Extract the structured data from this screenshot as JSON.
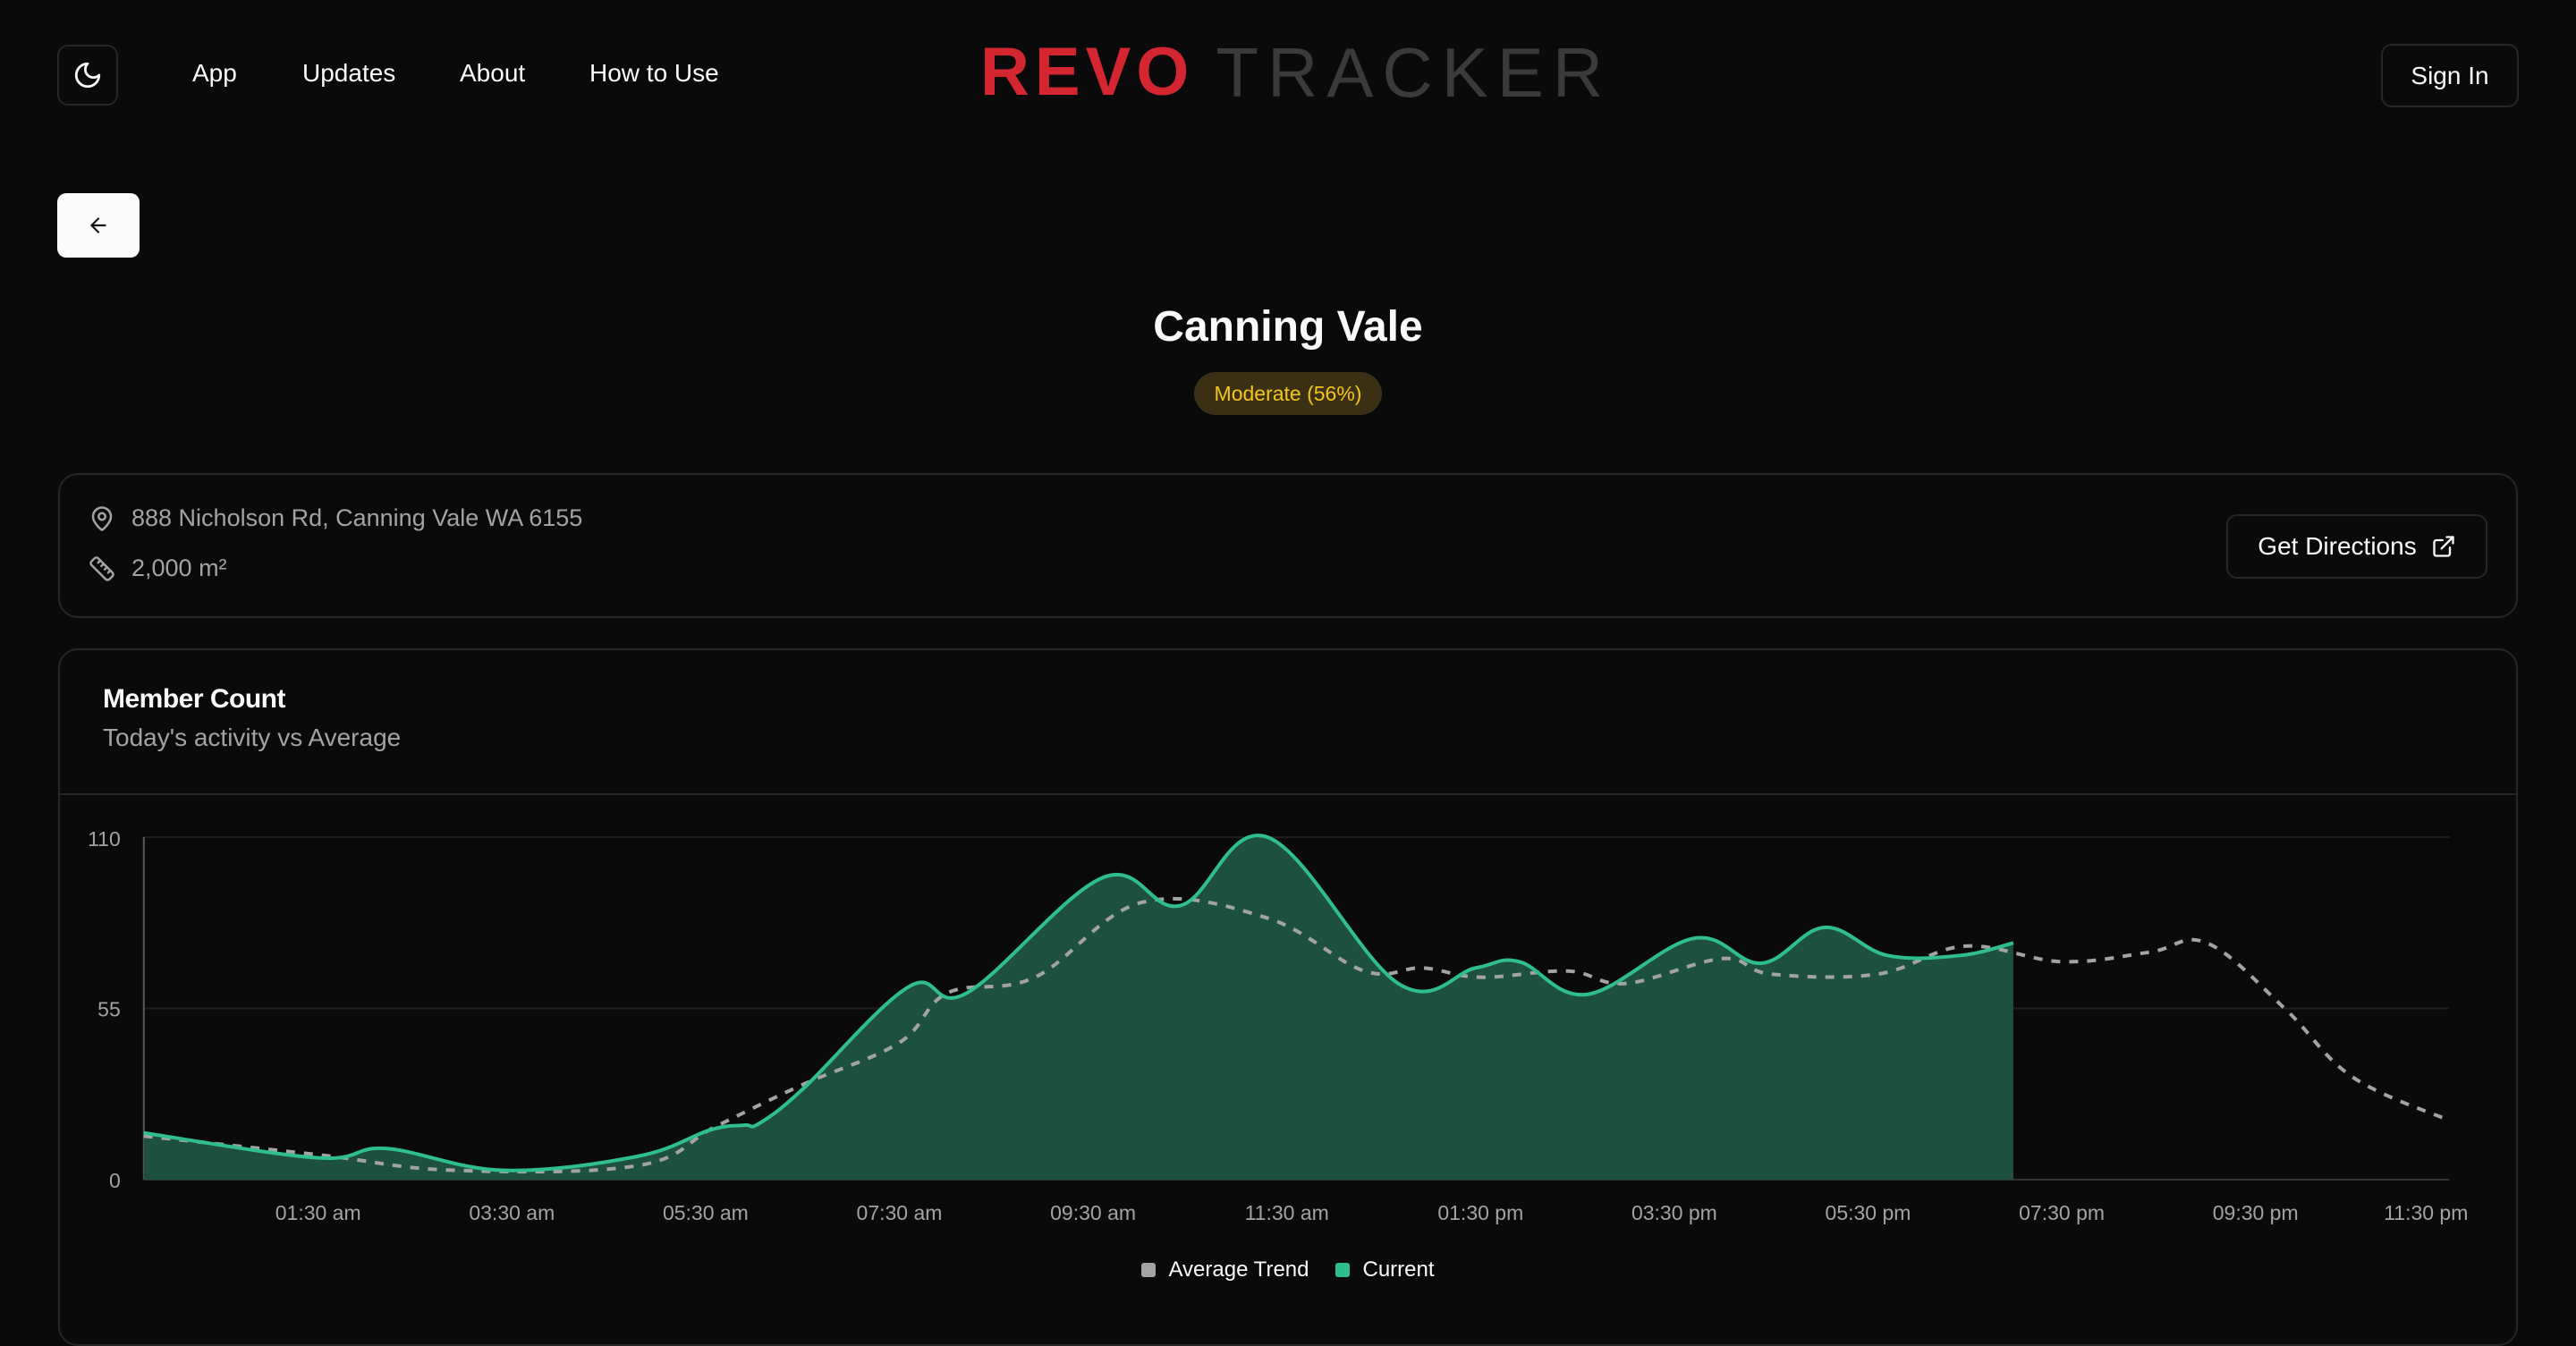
{
  "nav": {
    "theme_icon": "moon-icon",
    "links": [
      "App",
      "Updates",
      "About",
      "How to Use"
    ],
    "logo": {
      "bold": "REVO",
      "light": "TRACKER"
    },
    "sign_in": "Sign In"
  },
  "back_button": {
    "icon": "arrow-left-icon"
  },
  "gym": {
    "name": "Canning Vale",
    "status_badge": "Moderate (56%)",
    "address": "888 Nicholson Rd, Canning Vale WA 6155",
    "size": "2,000 m²",
    "directions_label": "Get Directions"
  },
  "chart_card": {
    "title": "Member Count",
    "subtitle": "Today's activity vs Average"
  },
  "colors": {
    "current": "#2fbf8c",
    "current_fill": "#1e5040",
    "average": "#a3a3a3",
    "badge_text": "#f5c518",
    "badge_bg": "#3b2f14",
    "logo_red": "#d32630"
  },
  "chart_data": {
    "type": "area",
    "title": "Member Count",
    "subtitle": "Today's activity vs Average",
    "xlabel": "",
    "ylabel": "",
    "ylim": [
      0,
      110
    ],
    "yticks": [
      0,
      55,
      110
    ],
    "xlim_hours": [
      -0.3,
      23.5
    ],
    "xticks": [
      "01:30 am",
      "03:30 am",
      "05:30 am",
      "07:30 am",
      "09:30 am",
      "11:30 am",
      "01:30 pm",
      "03:30 pm",
      "05:30 pm",
      "07:30 pm",
      "09:30 pm",
      "11:30 pm"
    ],
    "xtick_hours": [
      1.5,
      3.5,
      5.5,
      7.5,
      9.5,
      11.5,
      13.5,
      15.5,
      17.5,
      19.5,
      21.5,
      23.5
    ],
    "grid": "horizontal",
    "legend": [
      "Average Trend",
      "Current"
    ],
    "legend_position": "bottom",
    "series": [
      {
        "name": "Average Trend",
        "style": "dashed",
        "hours": [
          -0.3,
          1.5,
          2.9,
          4.8,
          5.6,
          6.5,
          7.5,
          8.0,
          8.9,
          10.0,
          11.3,
          12.3,
          12.9,
          13.5,
          14.4,
          15.0,
          16.0,
          16.5,
          17.6,
          18.5,
          19.5,
          20.4,
          21.0,
          21.8,
          22.5,
          23.5
        ],
        "values": [
          14,
          8,
          3,
          4.5,
          17,
          30.5,
          44,
          60,
          65,
          89,
          84,
          67,
          68,
          65,
          67,
          63,
          71,
          66,
          66,
          75,
          70,
          73,
          76,
          55,
          33,
          19
        ]
      },
      {
        "name": "Current",
        "style": "solid-area",
        "hours": [
          -0.3,
          1.5,
          2.2,
          3.4,
          4.8,
          5.55,
          5.9,
          6.5,
          6.05,
          7.6,
          8.2,
          9.6,
          10.4,
          11.3,
          12.65,
          13.45,
          13.9,
          14.6,
          15.7,
          16.4,
          17.05,
          17.7,
          18.45,
          19.0
        ],
        "values": [
          15,
          7,
          10,
          3,
          7.5,
          16,
          17.5,
          29,
          18,
          62,
          60,
          97,
          88,
          110,
          63,
          68,
          70,
          59.5,
          77.5,
          69.5,
          81,
          72,
          72,
          76
        ]
      }
    ]
  }
}
